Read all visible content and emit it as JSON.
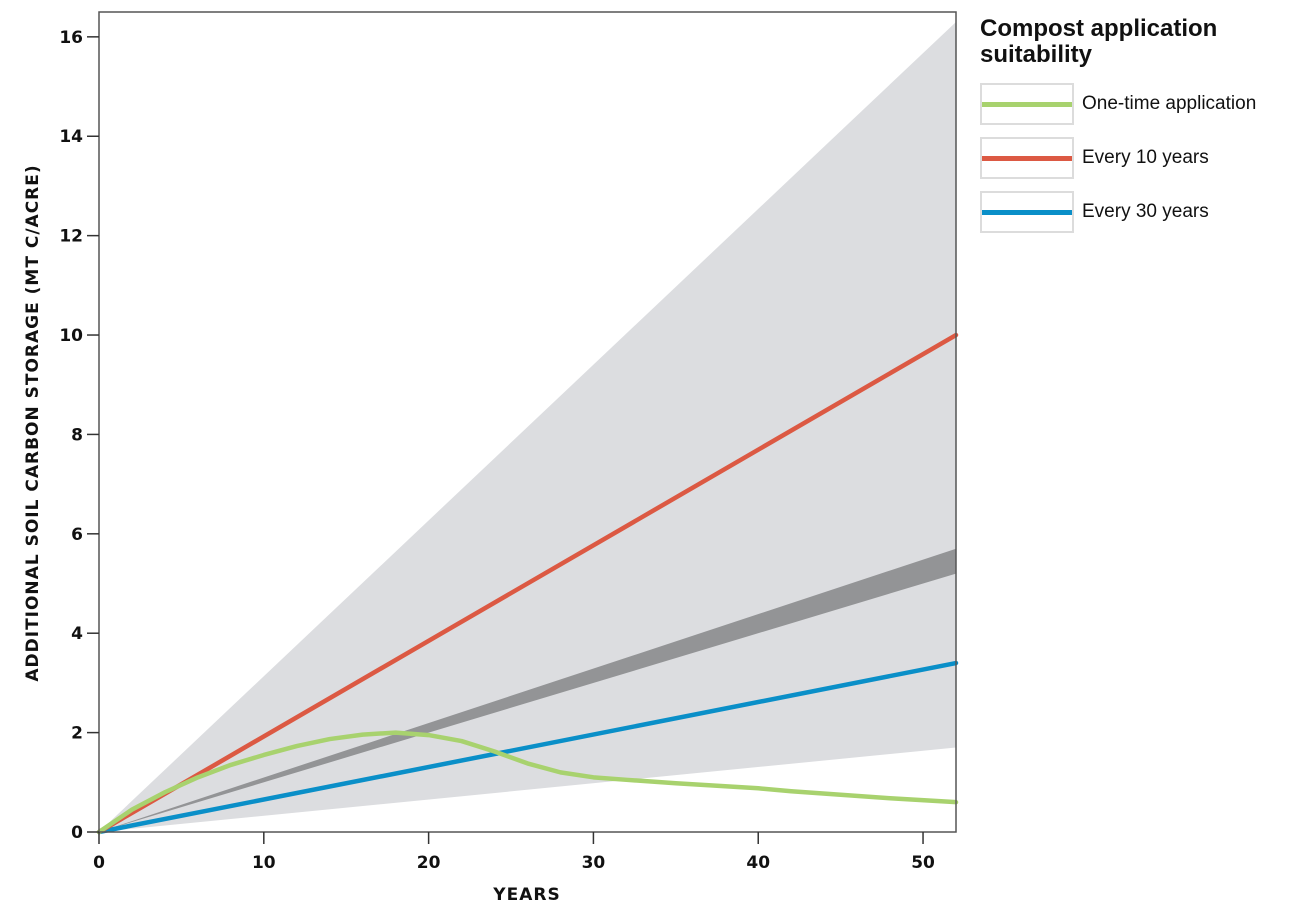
{
  "chart_data": {
    "type": "line",
    "title": "",
    "xlabel": "YEARS",
    "ylabel": "ADDITIONAL SOIL CARBON STORAGE (MT C/ACRE)",
    "xlim": [
      0,
      52
    ],
    "ylim": [
      0,
      16.5
    ],
    "xticks": [
      0,
      10,
      20,
      30,
      40,
      50
    ],
    "yticks": [
      0,
      2,
      4,
      6,
      8,
      10,
      12,
      14,
      16
    ],
    "grid": false,
    "legend_title": "Compost application suitability",
    "legend_position": "right",
    "bands": [
      {
        "name": "",
        "color": "#dcdde0",
        "x": [
          0,
          52
        ],
        "lower": [
          0,
          1.7
        ],
        "upper": [
          0,
          16.3
        ]
      },
      {
        "name": "",
        "color": "#939496",
        "x": [
          0,
          52
        ],
        "lower": [
          0,
          5.2
        ],
        "upper": [
          0,
          5.7
        ]
      }
    ],
    "series": [
      {
        "name": "Every 30 years",
        "color": "#0a8fc8",
        "x": [
          0,
          52
        ],
        "values": [
          0,
          3.4
        ]
      },
      {
        "name": "Every 10 years",
        "color": "#dc5943",
        "x": [
          0,
          52
        ],
        "values": [
          0,
          10.0
        ]
      },
      {
        "name": "One-time application",
        "color": "#a8d26e",
        "x": [
          0,
          2,
          4,
          6,
          8,
          10,
          12,
          14,
          16,
          18,
          20,
          22,
          24,
          26,
          28,
          30,
          32,
          35,
          38,
          40,
          42,
          45,
          48,
          52
        ],
        "values": [
          0,
          0.45,
          0.8,
          1.1,
          1.35,
          1.55,
          1.73,
          1.87,
          1.96,
          2.0,
          1.95,
          1.83,
          1.62,
          1.38,
          1.2,
          1.1,
          1.05,
          0.98,
          0.92,
          0.88,
          0.82,
          0.75,
          0.68,
          0.6
        ]
      }
    ]
  },
  "legend": {
    "title": "Compost application suitability",
    "items": [
      {
        "label": "One-time application",
        "color": "#a8d26e"
      },
      {
        "label": "Every 10 years",
        "color": "#dc5943"
      },
      {
        "label": "Every 30 years",
        "color": "#0a8fc8"
      }
    ]
  }
}
